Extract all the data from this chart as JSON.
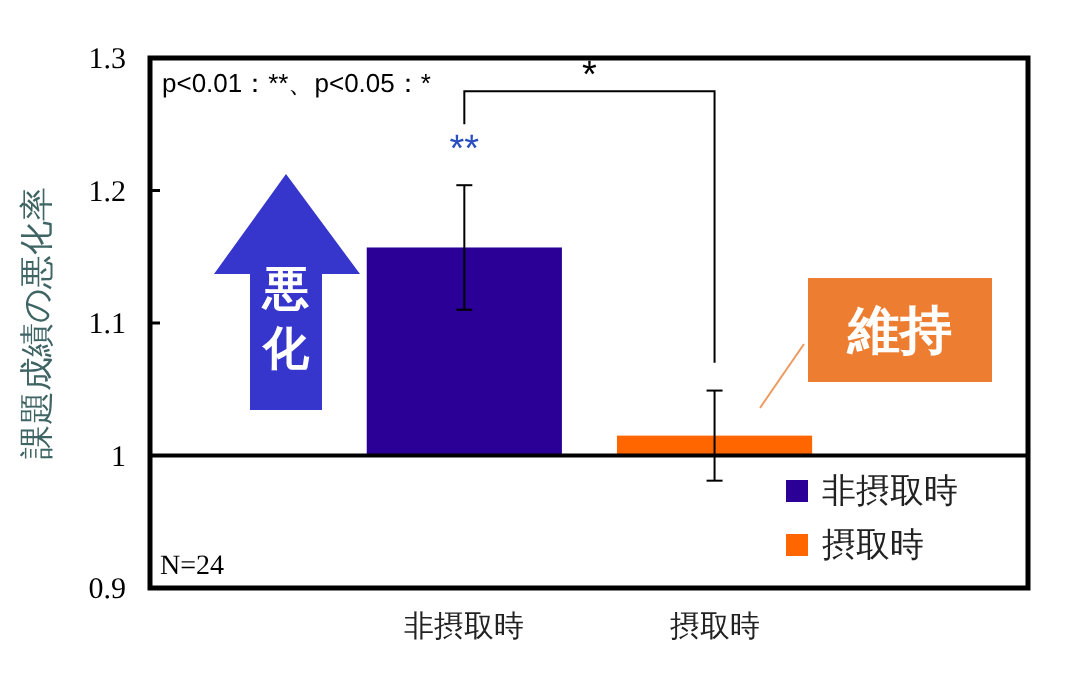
{
  "chart_data": {
    "type": "bar",
    "ylabel": "課題成績の悪化率",
    "categories": [
      "非摂取時",
      "摂取時"
    ],
    "series": [
      {
        "name": "非摂取時",
        "color": "#2a0096",
        "base": [
          1,
          null
        ],
        "values": [
          0.157,
          null
        ],
        "errors": [
          0.047,
          null
        ]
      },
      {
        "name": "摂取時",
        "color": "#ff6600",
        "base": [
          null,
          1
        ],
        "values": [
          null,
          0.015
        ],
        "errors": [
          null,
          0.034
        ]
      }
    ],
    "ylim": [
      0.9,
      1.3
    ],
    "yticks": [
      0.9,
      1,
      1.1,
      1.2,
      1.3
    ],
    "ref_lines": [
      {
        "axis": "y",
        "value": 1,
        "color": "#000000"
      }
    ],
    "annotations": [
      "p<0.01：**、p<0.05：*",
      "**",
      "*",
      "N=24",
      "悪化",
      "維持"
    ],
    "legend": "bottom right",
    "grid": false
  }
}
